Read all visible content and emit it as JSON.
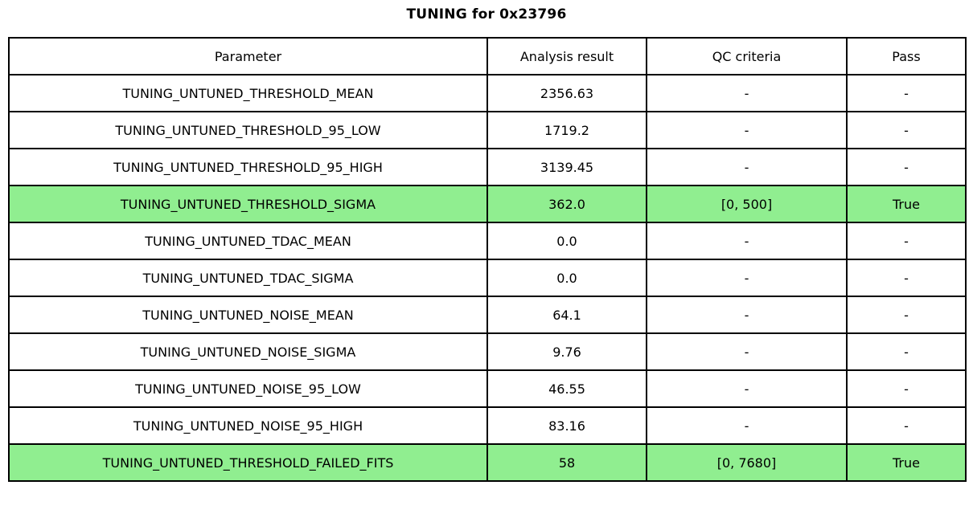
{
  "title": "TUNING for 0x23796",
  "colors": {
    "highlight": "#90EE90",
    "border": "#000000",
    "background": "#ffffff",
    "text": "#000000"
  },
  "chart_data": {
    "type": "table",
    "title": "TUNING for 0x23796",
    "columns": [
      "Parameter",
      "Analysis result",
      "QC criteria",
      "Pass"
    ],
    "rows": [
      [
        "TUNING_UNTUNED_THRESHOLD_MEAN",
        "2356.63",
        "-",
        "-"
      ],
      [
        "TUNING_UNTUNED_THRESHOLD_95_LOW",
        "1719.2",
        "-",
        "-"
      ],
      [
        "TUNING_UNTUNED_THRESHOLD_95_HIGH",
        "3139.45",
        "-",
        "-"
      ],
      [
        "TUNING_UNTUNED_THRESHOLD_SIGMA",
        "362.0",
        "[0, 500]",
        "True"
      ],
      [
        "TUNING_UNTUNED_TDAC_MEAN",
        "0.0",
        "-",
        "-"
      ],
      [
        "TUNING_UNTUNED_TDAC_SIGMA",
        "0.0",
        "-",
        "-"
      ],
      [
        "TUNING_UNTUNED_NOISE_MEAN",
        "64.1",
        "-",
        "-"
      ],
      [
        "TUNING_UNTUNED_NOISE_SIGMA",
        "9.76",
        "-",
        "-"
      ],
      [
        "TUNING_UNTUNED_NOISE_95_LOW",
        "46.55",
        "-",
        "-"
      ],
      [
        "TUNING_UNTUNED_NOISE_95_HIGH",
        "83.16",
        "-",
        "-"
      ],
      [
        "TUNING_UNTUNED_THRESHOLD_FAILED_FITS",
        "58",
        "[0, 7680]",
        "True"
      ]
    ],
    "highlighted_rows": [
      3,
      10
    ],
    "highlight_color": "#90EE90",
    "layout_hints": {
      "grid": "on",
      "header_row": true,
      "all_cells_centered": true
    }
  }
}
